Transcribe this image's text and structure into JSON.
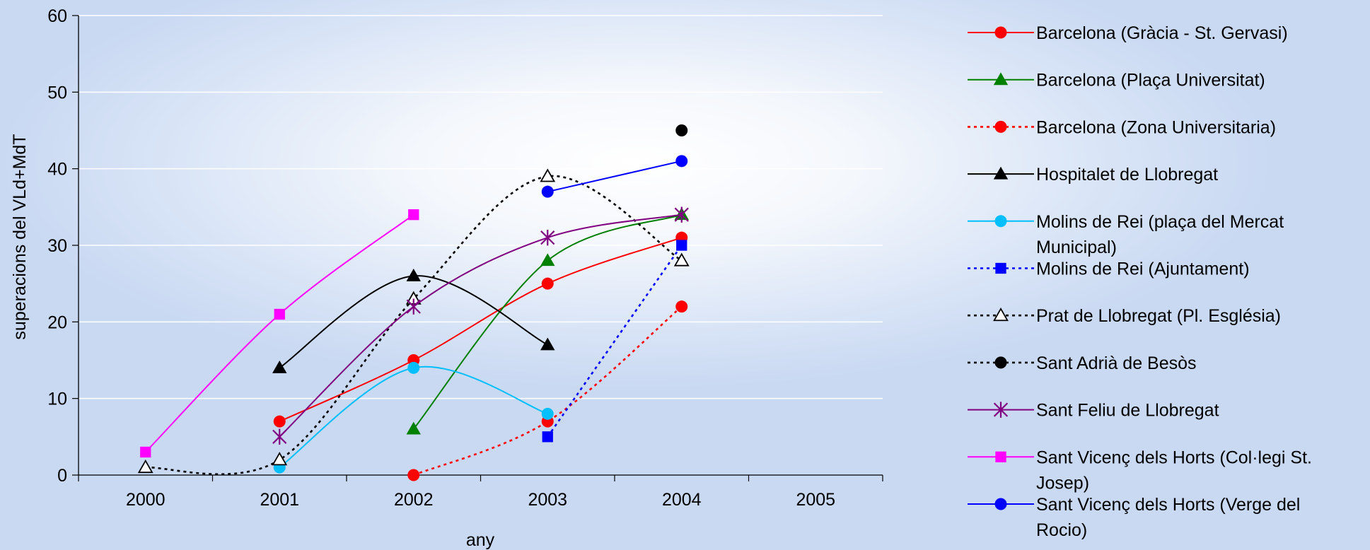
{
  "chart_data": {
    "type": "line",
    "xlabel": "any",
    "ylabel": "superacions del VLd+MdT",
    "xlim": [
      1999.5,
      2005.5
    ],
    "ylim": [
      0,
      60
    ],
    "x_ticks": [
      "2000",
      "2001",
      "2002",
      "2003",
      "2004",
      "2005"
    ],
    "y_ticks": [
      "0",
      "10",
      "20",
      "30",
      "40",
      "50",
      "60"
    ],
    "grid": "horizontal",
    "legend_position": "right",
    "series": [
      {
        "name": "Barcelona (Gràcia - St. Gervasi)",
        "color": "#ff0000",
        "marker": "circle",
        "dash": "solid",
        "x": [
          2001,
          2002,
          2003,
          2004
        ],
        "values": [
          7,
          15,
          25,
          31
        ]
      },
      {
        "name": "Barcelona (Plaça Universitat)",
        "color": "#008000",
        "marker": "triangle",
        "dash": "solid",
        "x": [
          2002,
          2003,
          2004
        ],
        "values": [
          6,
          28,
          34
        ]
      },
      {
        "name": "Barcelona (Zona Universitaria)",
        "color": "#ff0000",
        "marker": "circle",
        "dash": "dotted",
        "x": [
          2002,
          2003,
          2004
        ],
        "values": [
          0,
          7,
          22
        ]
      },
      {
        "name": "Hospitalet de Llobregat",
        "color": "#000000",
        "marker": "triangle",
        "dash": "solid",
        "x": [
          2001,
          2002,
          2003
        ],
        "values": [
          14,
          26,
          17
        ]
      },
      {
        "name": "Molins de Rei (plaça del Mercat Municipal)",
        "color": "#00bfff",
        "marker": "circle",
        "dash": "solid",
        "x": [
          2001,
          2002,
          2003
        ],
        "values": [
          1,
          14,
          8
        ]
      },
      {
        "name": "Molins de Rei (Ajuntament)",
        "color": "#0000ff",
        "marker": "square",
        "dash": "dotted",
        "x": [
          2003,
          2004
        ],
        "values": [
          5,
          30
        ]
      },
      {
        "name": "Prat de Llobregat (Pl. Església)",
        "color": "#000000",
        "marker": "triangle-open",
        "dash": "dotted",
        "x": [
          2000,
          2001,
          2002,
          2003,
          2004
        ],
        "values": [
          1,
          2,
          23,
          39,
          28
        ]
      },
      {
        "name": "Sant Adrià de Besòs",
        "color": "#000000",
        "marker": "circle",
        "dash": "dotted",
        "x": [
          2004
        ],
        "values": [
          45
        ]
      },
      {
        "name": "Sant Feliu de Llobregat",
        "color": "#800080",
        "marker": "star",
        "dash": "solid",
        "x": [
          2001,
          2002,
          2003,
          2004
        ],
        "values": [
          5,
          22,
          31,
          34
        ]
      },
      {
        "name": "Sant Vicenç dels Horts (Col·legi St. Josep)",
        "color": "#ff00ff",
        "marker": "square",
        "dash": "solid",
        "x": [
          2000,
          2001,
          2002
        ],
        "values": [
          3,
          21,
          34
        ]
      },
      {
        "name": "Sant Vicenç dels Horts (Verge del Rocio)",
        "color": "#0000ff",
        "marker": "circle",
        "dash": "solid",
        "x": [
          2003,
          2004
        ],
        "values": [
          37,
          41
        ]
      }
    ],
    "legend_lines": [
      [
        "Barcelona (Gràcia - St. Gervasi)"
      ],
      [
        "Barcelona (Plaça Universitat)"
      ],
      [
        "Barcelona (Zona Universitaria)"
      ],
      [
        "Hospitalet de Llobregat"
      ],
      [
        "Molins de Rei (plaça del Mercat",
        "Municipal)"
      ],
      [
        "Molins de Rei (Ajuntament)"
      ],
      [
        "Prat de Llobregat (Pl. Església)"
      ],
      [
        "Sant Adrià de Besòs"
      ],
      [
        "Sant Feliu de Llobregat"
      ],
      [
        "Sant Vicenç dels Horts (Col·legi St.",
        "Josep)"
      ],
      [
        "Sant Vicenç dels Horts (Verge del",
        "Rocio)"
      ]
    ]
  }
}
